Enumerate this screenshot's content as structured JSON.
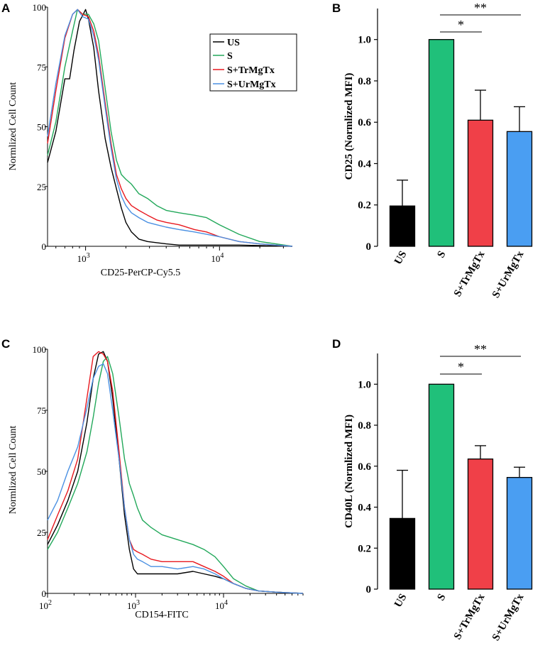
{
  "colors": {
    "US": "#000000",
    "S": "#22a85a",
    "S+TrMgTx": "#e8191f",
    "S+UrMgTx": "#4a90e2",
    "bar_US": "#000000",
    "bar_S": "#20c07a",
    "bar_Tr": "#f04048",
    "bar_Ur": "#4a9ef2"
  },
  "panels": {
    "A": "A",
    "B": "B",
    "C": "C",
    "D": "D"
  },
  "chart_data": [
    {
      "id": "A",
      "type": "line",
      "title": "",
      "xlabel": "CD25-PerCP-Cy5.5",
      "ylabel": "Normlized Cell Count",
      "xscale": "log",
      "xlim": [
        520,
        35000
      ],
      "ylim": [
        0,
        100
      ],
      "yticks": [
        "0",
        "25",
        "50",
        "75",
        "100"
      ],
      "xticks": [
        {
          "value": 1000,
          "base": "10",
          "exp": "3"
        },
        {
          "value": 10000,
          "base": "10",
          "exp": "4"
        }
      ],
      "legend": {
        "position": "top-right",
        "entries": [
          "US",
          "S",
          "S+TrMgTx",
          "S+UrMgTx"
        ]
      },
      "series": [
        {
          "name": "US",
          "x": [
            520,
            600,
            700,
            760,
            820,
            900,
            960,
            1000,
            1050,
            1150,
            1250,
            1400,
            1550,
            1700,
            1850,
            2000,
            2200,
            2500,
            2900,
            3400,
            4000,
            5000,
            6500,
            8000,
            10000,
            14000,
            20000,
            35000
          ],
          "values": [
            35,
            48,
            70,
            70,
            82,
            94,
            97,
            99,
            95,
            83,
            65,
            45,
            33,
            24,
            16,
            10,
            6,
            3,
            2,
            1.5,
            1,
            0.5,
            0.5,
            0.5,
            0.5,
            0.5,
            0.3,
            0
          ]
        },
        {
          "name": "S",
          "x": [
            520,
            600,
            700,
            800,
            870,
            950,
            1050,
            1150,
            1250,
            1400,
            1550,
            1700,
            1850,
            2000,
            2200,
            2500,
            2900,
            3400,
            4000,
            5000,
            6500,
            8000,
            10000,
            14000,
            20000,
            35000
          ],
          "values": [
            38,
            52,
            75,
            90,
            99,
            97,
            97,
            93,
            86,
            66,
            48,
            36,
            30,
            28,
            26,
            22,
            20,
            17,
            15,
            14,
            13,
            12,
            9,
            5,
            2,
            0
          ]
        },
        {
          "name": "S+TrMgTx",
          "x": [
            520,
            600,
            700,
            800,
            870,
            950,
            1050,
            1150,
            1250,
            1400,
            1550,
            1700,
            1850,
            2000,
            2200,
            2500,
            2900,
            3400,
            4000,
            5000,
            6500,
            8000,
            10000,
            14000,
            20000,
            35000
          ],
          "values": [
            43,
            65,
            87,
            97,
            99,
            97,
            96,
            90,
            80,
            60,
            43,
            30,
            24,
            20,
            17,
            15,
            13,
            11,
            10,
            9,
            7,
            6,
            4,
            2,
            1,
            0
          ]
        },
        {
          "name": "S+UrMgTx",
          "x": [
            520,
            600,
            700,
            800,
            870,
            950,
            1050,
            1150,
            1250,
            1400,
            1550,
            1700,
            1850,
            2000,
            2200,
            2500,
            2900,
            3400,
            4000,
            5000,
            6500,
            8000,
            10000,
            14000,
            20000,
            35000
          ],
          "values": [
            46,
            68,
            88,
            97,
            99,
            96,
            95,
            88,
            78,
            58,
            41,
            28,
            21,
            17,
            14,
            12,
            10,
            9,
            8,
            7,
            6,
            5,
            4,
            2,
            1,
            0
          ]
        }
      ]
    },
    {
      "id": "B",
      "type": "bar",
      "categories": [
        "US",
        "S",
        "S+TrMgTx",
        "S+UrMgTx"
      ],
      "values": [
        0.195,
        1.0,
        0.61,
        0.555
      ],
      "errors": [
        0.125,
        0,
        0.145,
        0.12
      ],
      "xlabel": "",
      "ylabel": "CD25 (Normlized MFI)",
      "ylim": [
        0,
        1.15
      ],
      "yticks": [
        "0",
        "0.2",
        "0.4",
        "0.6",
        "0.8",
        "1.0"
      ],
      "annotations": [
        {
          "from": 1,
          "to": 2,
          "text": "*"
        },
        {
          "from": 1,
          "to": 3,
          "text": "**"
        }
      ]
    },
    {
      "id": "C",
      "type": "line",
      "title": "",
      "xlabel": "CD154-FITC",
      "ylabel": "Normlized Cell Count",
      "xscale": "log",
      "xlim": [
        100,
        80000
      ],
      "ylim": [
        0,
        100
      ],
      "yticks": [
        "0",
        "25",
        "50",
        "75",
        "100"
      ],
      "xticks": [
        {
          "value": 100,
          "base": "10",
          "exp": "2"
        },
        {
          "value": 1000,
          "base": "10",
          "exp": "3"
        },
        {
          "value": 10000,
          "base": "10",
          "exp": "4"
        }
      ],
      "series": [
        {
          "name": "US",
          "x": [
            100,
            130,
            170,
            220,
            280,
            330,
            380,
            430,
            480,
            550,
            650,
            750,
            850,
            950,
            1050,
            1200,
            1500,
            2000,
            3000,
            4500,
            6000,
            8000,
            10000,
            13000,
            18000,
            25000,
            40000,
            80000
          ],
          "values": [
            20,
            28,
            38,
            50,
            70,
            88,
            98,
            99,
            95,
            80,
            55,
            32,
            18,
            10,
            8,
            8,
            8,
            8,
            8,
            9,
            8,
            7,
            6,
            4,
            2,
            1,
            0.5,
            0
          ]
        },
        {
          "name": "S",
          "x": [
            100,
            130,
            170,
            220,
            280,
            330,
            380,
            430,
            480,
            550,
            650,
            750,
            850,
            950,
            1050,
            1200,
            1500,
            2000,
            3000,
            4500,
            6000,
            8000,
            10000,
            13000,
            18000,
            25000,
            40000,
            80000
          ],
          "values": [
            18,
            25,
            35,
            45,
            58,
            72,
            86,
            95,
            97,
            90,
            72,
            55,
            45,
            40,
            35,
            30,
            27,
            24,
            22,
            20,
            18,
            15,
            11,
            6,
            3,
            1,
            0.5,
            0
          ]
        },
        {
          "name": "S+TrMgTx",
          "x": [
            100,
            130,
            170,
            220,
            280,
            330,
            380,
            430,
            480,
            550,
            650,
            750,
            850,
            950,
            1050,
            1200,
            1500,
            2000,
            3000,
            4500,
            6000,
            8000,
            10000,
            13000,
            18000,
            25000,
            40000,
            80000
          ],
          "values": [
            22,
            32,
            42,
            55,
            80,
            97,
            99,
            98,
            95,
            83,
            58,
            35,
            22,
            18,
            17,
            16,
            14,
            13,
            13,
            13,
            11,
            9,
            7,
            4,
            2,
            1,
            0.5,
            0
          ]
        },
        {
          "name": "S+UrMgTx",
          "x": [
            100,
            130,
            170,
            220,
            280,
            330,
            380,
            430,
            480,
            550,
            650,
            750,
            850,
            950,
            1050,
            1200,
            1500,
            2000,
            3000,
            4500,
            6000,
            8000,
            10000,
            13000,
            18000,
            25000,
            40000,
            80000
          ],
          "values": [
            30,
            38,
            50,
            60,
            76,
            88,
            93,
            94,
            90,
            75,
            55,
            35,
            22,
            16,
            14,
            13,
            11,
            11,
            10,
            11,
            10,
            8,
            6,
            4,
            2,
            1,
            0.5,
            0
          ]
        }
      ]
    },
    {
      "id": "D",
      "type": "bar",
      "categories": [
        "US",
        "S",
        "S+TrMgTx",
        "S+UrMgTx"
      ],
      "values": [
        0.345,
        1.0,
        0.635,
        0.545
      ],
      "errors": [
        0.235,
        0,
        0.065,
        0.05
      ],
      "xlabel": "",
      "ylabel": "CD40L (Normlized MFI)",
      "ylim": [
        0,
        1.15
      ],
      "yticks": [
        "0",
        "0.2",
        "0.4",
        "0.6",
        "0.8",
        "1.0"
      ],
      "annotations": [
        {
          "from": 1,
          "to": 2,
          "text": "*"
        },
        {
          "from": 1,
          "to": 3,
          "text": "**"
        }
      ]
    }
  ]
}
